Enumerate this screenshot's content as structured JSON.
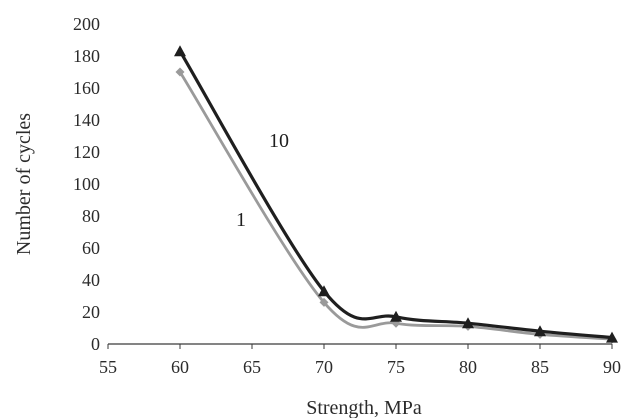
{
  "chart_data": {
    "type": "line",
    "title": "",
    "xlabel": "Strength, MPa",
    "ylabel": "Number of cycles",
    "xlim": [
      55,
      90
    ],
    "ylim": [
      0,
      200
    ],
    "x_ticks": [
      "55",
      "60",
      "65",
      "70",
      "75",
      "80",
      "85",
      "90"
    ],
    "y_ticks": [
      "0",
      "20",
      "40",
      "60",
      "80",
      "100",
      "120",
      "140",
      "160",
      "180",
      "200"
    ],
    "grid": false,
    "legend": "none",
    "series": [
      {
        "name": "10",
        "color": "#1f1f1f",
        "marker": "triangle",
        "x": [
          60,
          70,
          75,
          80,
          85,
          90
        ],
        "y": [
          183,
          33,
          17,
          13,
          8,
          4
        ]
      },
      {
        "name": "1",
        "color": "#9a9a9a",
        "marker": "diamond",
        "x": [
          60,
          70,
          75,
          80,
          85,
          90
        ],
        "y": [
          170,
          26,
          13,
          11,
          6,
          3
        ]
      }
    ]
  }
}
